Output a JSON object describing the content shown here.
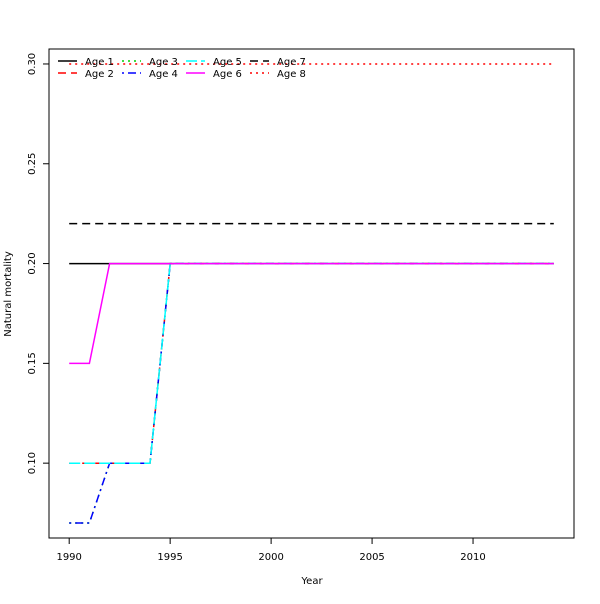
{
  "chart_data": {
    "type": "line",
    "title": "",
    "xlabel": "Year",
    "ylabel": "Natural mortality",
    "xlim": [
      1989,
      2015
    ],
    "ylim": [
      0.0625,
      0.3075
    ],
    "xticks": [
      1990,
      1995,
      2000,
      2005,
      2010
    ],
    "yticks": [
      0.1,
      0.15,
      0.2,
      0.25,
      0.3
    ],
    "ytick_labels": [
      "0.10",
      "0.15",
      "0.20",
      "0.25",
      "0.30"
    ],
    "grid": false,
    "legend_position": "top-left",
    "x": [
      1990,
      1991,
      1992,
      1993,
      1994,
      1995,
      1996,
      1997,
      1998,
      1999,
      2000,
      2001,
      2002,
      2003,
      2004,
      2005,
      2006,
      2007,
      2008,
      2009,
      2010,
      2011,
      2012,
      2013,
      2014
    ],
    "series": [
      {
        "name": "Age 1",
        "color": "#000000",
        "dash": "solid",
        "values": [
          0.2,
          0.2,
          0.2,
          0.2,
          0.2,
          0.2,
          0.2,
          0.2,
          0.2,
          0.2,
          0.2,
          0.2,
          0.2,
          0.2,
          0.2,
          0.2,
          0.2,
          0.2,
          0.2,
          0.2,
          0.2,
          0.2,
          0.2,
          0.2,
          0.2
        ]
      },
      {
        "name": "Age 2",
        "color": "#ff0000",
        "dash": "dashed",
        "values": [
          0.1,
          0.1,
          0.1,
          0.1,
          0.1,
          0.2,
          0.2,
          0.2,
          0.2,
          0.2,
          0.2,
          0.2,
          0.2,
          0.2,
          0.2,
          0.2,
          0.2,
          0.2,
          0.2,
          0.2,
          0.2,
          0.2,
          0.2,
          0.2,
          0.2
        ]
      },
      {
        "name": "Age 3",
        "color": "#00cd00",
        "dash": "dotted",
        "values": [
          0.07,
          0.07,
          0.1,
          0.1,
          0.1,
          0.2,
          0.2,
          0.2,
          0.2,
          0.2,
          0.2,
          0.2,
          0.2,
          0.2,
          0.2,
          0.2,
          0.2,
          0.2,
          0.2,
          0.2,
          0.2,
          0.2,
          0.2,
          0.2,
          0.2
        ]
      },
      {
        "name": "Age 4",
        "color": "#0000ff",
        "dash": "dotdash",
        "values": [
          0.07,
          0.07,
          0.1,
          0.1,
          0.1,
          0.2,
          0.2,
          0.2,
          0.2,
          0.2,
          0.2,
          0.2,
          0.2,
          0.2,
          0.2,
          0.2,
          0.2,
          0.2,
          0.2,
          0.2,
          0.2,
          0.2,
          0.2,
          0.2,
          0.2
        ]
      },
      {
        "name": "Age 5",
        "color": "#00ffff",
        "dash": "longdash",
        "values": [
          0.1,
          0.1,
          0.1,
          0.1,
          0.1,
          0.2,
          0.2,
          0.2,
          0.2,
          0.2,
          0.2,
          0.2,
          0.2,
          0.2,
          0.2,
          0.2,
          0.2,
          0.2,
          0.2,
          0.2,
          0.2,
          0.2,
          0.2,
          0.2,
          0.2
        ]
      },
      {
        "name": "Age 6",
        "color": "#ff00ff",
        "dash": "solid",
        "values": [
          0.15,
          0.15,
          0.2,
          0.2,
          0.2,
          0.2,
          0.2,
          0.2,
          0.2,
          0.2,
          0.2,
          0.2,
          0.2,
          0.2,
          0.2,
          0.2,
          0.2,
          0.2,
          0.2,
          0.2,
          0.2,
          0.2,
          0.2,
          0.2,
          0.2
        ]
      },
      {
        "name": "Age 7",
        "color": "#000000",
        "dash": "dashed",
        "values": [
          0.22,
          0.22,
          0.22,
          0.22,
          0.22,
          0.22,
          0.22,
          0.22,
          0.22,
          0.22,
          0.22,
          0.22,
          0.22,
          0.22,
          0.22,
          0.22,
          0.22,
          0.22,
          0.22,
          0.22,
          0.22,
          0.22,
          0.22,
          0.22,
          0.22
        ]
      },
      {
        "name": "Age 8",
        "color": "#ff0000",
        "dash": "dotted",
        "values": [
          0.3,
          0.3,
          0.3,
          0.3,
          0.3,
          0.3,
          0.3,
          0.3,
          0.3,
          0.3,
          0.3,
          0.3,
          0.3,
          0.3,
          0.3,
          0.3,
          0.3,
          0.3,
          0.3,
          0.3,
          0.3,
          0.3,
          0.3,
          0.3,
          0.3
        ]
      }
    ]
  }
}
